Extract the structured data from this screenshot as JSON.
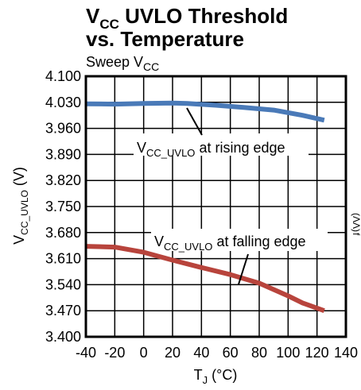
{
  "chart_data": {
    "type": "line",
    "title_line1_main": "V",
    "title_line1_sub": "CC",
    "title_line1_rest": " UVLO Threshold",
    "title_line2": "vs. Temperature",
    "subtitle_main": "Sweep V",
    "subtitle_sub": "CC",
    "xlabel_main": "T",
    "xlabel_sub": "J",
    "xlabel_rest": " (°C)",
    "ylabel_main": "V",
    "ylabel_sub": "CC_UVLO",
    "ylabel_rest": " (V)",
    "xlim": [
      -40,
      140
    ],
    "ylim": [
      3.4,
      4.1
    ],
    "x_ticks": [
      "-40",
      "-20",
      "0",
      "20",
      "40",
      "60",
      "80",
      "100",
      "120",
      "140"
    ],
    "y_ticks": [
      "4.100",
      "4.030",
      "3.960",
      "3.890",
      "3.820",
      "3.750",
      "3.680",
      "3.610",
      "3.540",
      "3.470",
      "3.400"
    ],
    "grid": true,
    "series": [
      {
        "name_main": "V",
        "name_sub": "CC_UVLO",
        "name_rest": " at rising edge",
        "color": "#4a7ab8",
        "x": [
          -40,
          -20,
          0,
          20,
          30,
          50,
          70,
          90,
          110,
          125
        ],
        "y": [
          4.026,
          4.025,
          4.027,
          4.028,
          4.027,
          4.022,
          4.016,
          4.009,
          3.995,
          3.982
        ]
      },
      {
        "name_main": "V",
        "name_sub": "CC_UVLO",
        "name_rest": " at falling edge",
        "color": "#b8443c",
        "x": [
          -40,
          -20,
          0,
          20,
          40,
          60,
          80,
          100,
          110,
          125
        ],
        "y": [
          3.643,
          3.641,
          3.627,
          3.606,
          3.586,
          3.567,
          3.544,
          3.51,
          3.491,
          3.47
        ]
      }
    ],
    "edge_glyphs": [
      "(ΛΛ)",
      "f"
    ]
  }
}
